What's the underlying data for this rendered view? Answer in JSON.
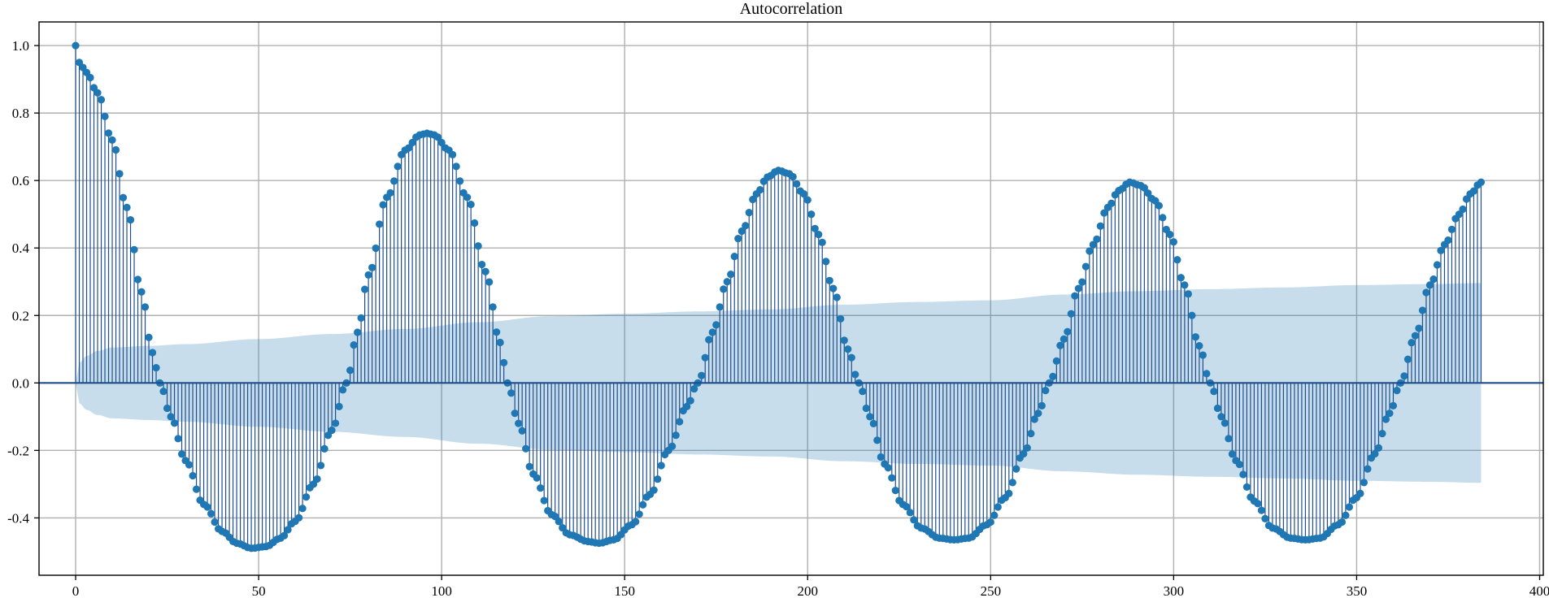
{
  "chart_data": {
    "type": "stem",
    "title": "Autocorrelation",
    "xlabel": "",
    "ylabel": "",
    "xlim": [
      -10,
      401
    ],
    "ylim": [
      -0.57,
      1.07
    ],
    "x_ticks": [
      0,
      50,
      100,
      150,
      200,
      250,
      300,
      350,
      400
    ],
    "y_ticks": [
      -0.4,
      -0.2,
      0.0,
      0.2,
      0.4,
      0.6,
      0.8,
      1.0
    ],
    "x_tick_labels": [
      "0",
      "50",
      "100",
      "150",
      "200",
      "250",
      "300",
      "350",
      "400"
    ],
    "y_tick_labels": [
      "-0.4",
      "-0.2",
      "0.0",
      "0.2",
      "0.4",
      "0.6",
      "0.8",
      "1.0"
    ],
    "grid": true,
    "lag_start": 0,
    "lag_end": 384,
    "acf_keypoints": [
      [
        0,
        1.0
      ],
      [
        1,
        0.95
      ],
      [
        3,
        0.92
      ],
      [
        6,
        0.86
      ],
      [
        10,
        0.72
      ],
      [
        14,
        0.52
      ],
      [
        18,
        0.27
      ],
      [
        21,
        0.09
      ],
      [
        23,
        0.0
      ],
      [
        26,
        -0.1
      ],
      [
        30,
        -0.23
      ],
      [
        35,
        -0.36
      ],
      [
        40,
        -0.44
      ],
      [
        44,
        -0.475
      ],
      [
        48,
        -0.49
      ],
      [
        52,
        -0.485
      ],
      [
        56,
        -0.46
      ],
      [
        60,
        -0.41
      ],
      [
        65,
        -0.3
      ],
      [
        70,
        -0.14
      ],
      [
        74,
        0.0
      ],
      [
        77,
        0.15
      ],
      [
        80,
        0.32
      ],
      [
        85,
        0.55
      ],
      [
        90,
        0.69
      ],
      [
        94,
        0.735
      ],
      [
        96,
        0.74
      ],
      [
        98,
        0.735
      ],
      [
        102,
        0.69
      ],
      [
        107,
        0.55
      ],
      [
        112,
        0.33
      ],
      [
        116,
        0.12
      ],
      [
        118,
        0.0
      ],
      [
        121,
        -0.12
      ],
      [
        125,
        -0.27
      ],
      [
        130,
        -0.39
      ],
      [
        135,
        -0.45
      ],
      [
        140,
        -0.47
      ],
      [
        143,
        -0.475
      ],
      [
        147,
        -0.465
      ],
      [
        152,
        -0.42
      ],
      [
        157,
        -0.33
      ],
      [
        162,
        -0.2
      ],
      [
        167,
        -0.07
      ],
      [
        170,
        0.0
      ],
      [
        174,
        0.15
      ],
      [
        178,
        0.3
      ],
      [
        182,
        0.45
      ],
      [
        186,
        0.56
      ],
      [
        189,
        0.61
      ],
      [
        192,
        0.63
      ],
      [
        195,
        0.62
      ],
      [
        199,
        0.56
      ],
      [
        203,
        0.44
      ],
      [
        207,
        0.28
      ],
      [
        211,
        0.1
      ],
      [
        214,
        0.0
      ],
      [
        217,
        -0.1
      ],
      [
        221,
        -0.24
      ],
      [
        226,
        -0.36
      ],
      [
        231,
        -0.43
      ],
      [
        236,
        -0.46
      ],
      [
        240,
        -0.465
      ],
      [
        244,
        -0.46
      ],
      [
        249,
        -0.42
      ],
      [
        254,
        -0.34
      ],
      [
        259,
        -0.21
      ],
      [
        263,
        -0.09
      ],
      [
        266,
        0.0
      ],
      [
        270,
        0.13
      ],
      [
        274,
        0.28
      ],
      [
        278,
        0.41
      ],
      [
        282,
        0.52
      ],
      [
        285,
        0.57
      ],
      [
        288,
        0.595
      ],
      [
        291,
        0.585
      ],
      [
        295,
        0.54
      ],
      [
        299,
        0.44
      ],
      [
        303,
        0.29
      ],
      [
        307,
        0.11
      ],
      [
        310,
        0.0
      ],
      [
        313,
        -0.1
      ],
      [
        317,
        -0.23
      ],
      [
        322,
        -0.35
      ],
      [
        327,
        -0.43
      ],
      [
        332,
        -0.46
      ],
      [
        336,
        -0.465
      ],
      [
        340,
        -0.46
      ],
      [
        345,
        -0.42
      ],
      [
        350,
        -0.34
      ],
      [
        355,
        -0.21
      ],
      [
        359,
        -0.09
      ],
      [
        362,
        0.0
      ],
      [
        366,
        0.14
      ],
      [
        370,
        0.29
      ],
      [
        374,
        0.41
      ],
      [
        378,
        0.5
      ],
      [
        381,
        0.56
      ],
      [
        384,
        0.595
      ]
    ],
    "confidence_band_keypoints": [
      [
        0,
        0.0
      ],
      [
        1,
        0.06
      ],
      [
        3,
        0.08
      ],
      [
        6,
        0.095
      ],
      [
        10,
        0.105
      ],
      [
        20,
        0.11
      ],
      [
        30,
        0.115
      ],
      [
        50,
        0.13
      ],
      [
        70,
        0.145
      ],
      [
        90,
        0.16
      ],
      [
        110,
        0.18
      ],
      [
        130,
        0.198
      ],
      [
        150,
        0.205
      ],
      [
        170,
        0.212
      ],
      [
        190,
        0.218
      ],
      [
        210,
        0.232
      ],
      [
        230,
        0.24
      ],
      [
        250,
        0.245
      ],
      [
        270,
        0.262
      ],
      [
        290,
        0.272
      ],
      [
        310,
        0.278
      ],
      [
        330,
        0.283
      ],
      [
        350,
        0.29
      ],
      [
        370,
        0.293
      ],
      [
        384,
        0.296
      ]
    ],
    "colors": {
      "stem": "#1f4e8c",
      "marker": "#1f77b4",
      "band": "#1f77b4",
      "zero_line": "#1f4e8c",
      "grid": "#b0b0b0"
    }
  }
}
